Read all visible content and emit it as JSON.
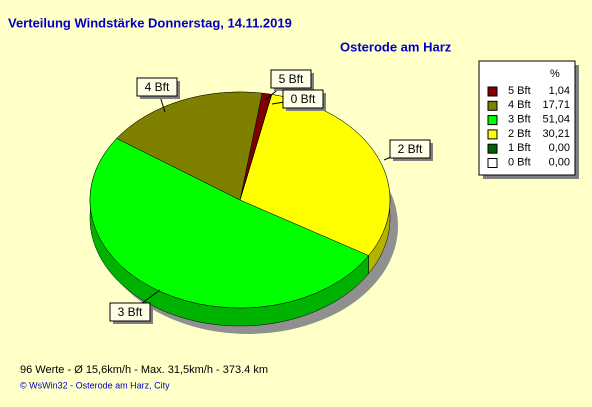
{
  "chart_data": {
    "type": "pie",
    "title": "Verteilung Windstärke  Donnerstag, 14.11.2019",
    "subtitle": "Osterode am Harz",
    "legend_title": "%",
    "categories": [
      "5 Bft",
      "4 Bft",
      "3 Bft",
      "2 Bft",
      "1 Bft",
      "0 Bft"
    ],
    "values": [
      1.04,
      17.71,
      51.04,
      30.21,
      0,
      0
    ],
    "value_labels": [
      "1,04",
      "17,71",
      "51,04",
      "30,21",
      "0,00",
      "0,00"
    ],
    "colors": [
      "#800000",
      "#808000",
      "#00ff00",
      "#ffff00",
      "#006400",
      "#ffffff"
    ]
  },
  "footer": {
    "stats": "96 Werte   -   Ø 15,6km/h  -  Max. 31,5km/h   -   373.4 km",
    "copyright": "© WsWin32  -  Osterode am Harz, City"
  }
}
